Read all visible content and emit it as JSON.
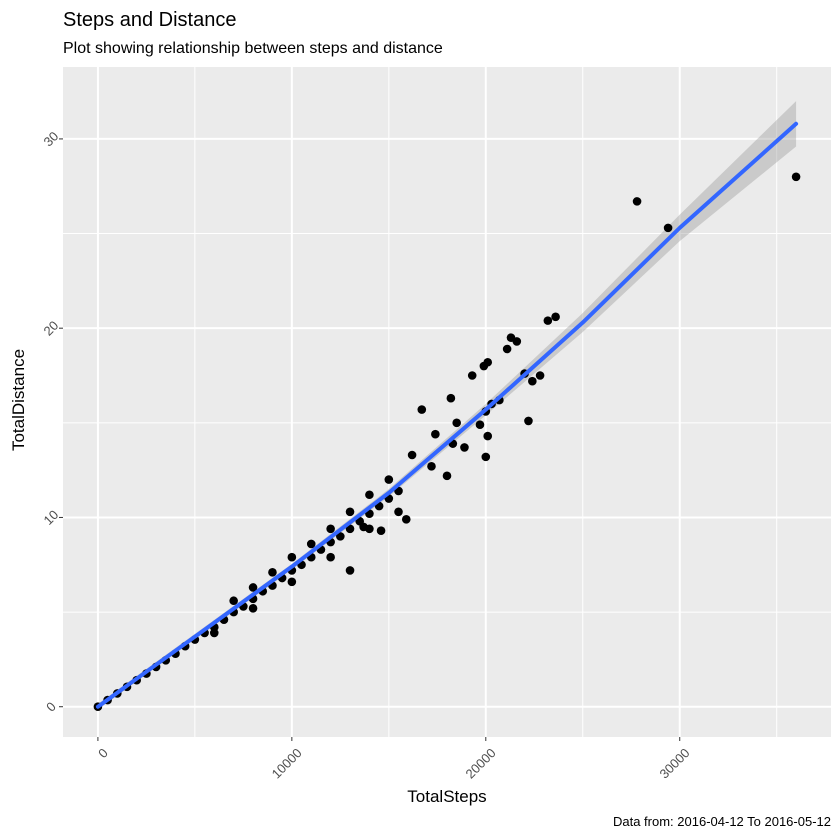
{
  "chart_data": {
    "type": "scatter",
    "title": "Steps and Distance",
    "subtitle": "Plot showing relationship between steps and distance",
    "xlabel": "TotalSteps",
    "ylabel": "TotalDistance",
    "caption": "Data from: 2016-04-12 To 2016-05-12",
    "xlim": [
      -1800,
      37800
    ],
    "ylim": [
      -1.6,
      33.8
    ],
    "x_ticks": [
      0,
      10000,
      20000,
      30000
    ],
    "y_ticks": [
      0,
      10,
      20,
      30
    ],
    "x_tick_labels": [
      "0",
      "10000",
      "20000",
      "30000"
    ],
    "y_tick_labels": [
      "0",
      "10",
      "20",
      "30"
    ],
    "grid": true,
    "legend": "none",
    "colors": {
      "panel": "#ebebeb",
      "grid": "#ffffff",
      "points": "#000000",
      "smooth_line": "#3366ff",
      "confidence_band": "#999999"
    },
    "series": [
      {
        "type": "scatter",
        "points": [
          [
            0,
            0
          ],
          [
            500,
            0.35
          ],
          [
            1000,
            0.7
          ],
          [
            1500,
            1.05
          ],
          [
            2000,
            1.4
          ],
          [
            2500,
            1.75
          ],
          [
            3000,
            2.1
          ],
          [
            3500,
            2.45
          ],
          [
            4000,
            2.8
          ],
          [
            4500,
            3.2
          ],
          [
            5000,
            3.55
          ],
          [
            5500,
            3.9
          ],
          [
            6000,
            4.2
          ],
          [
            6500,
            4.6
          ],
          [
            7000,
            5.0
          ],
          [
            7500,
            5.3
          ],
          [
            8000,
            5.7
          ],
          [
            8500,
            6.1
          ],
          [
            9000,
            6.4
          ],
          [
            9500,
            6.8
          ],
          [
            10000,
            7.2
          ],
          [
            10500,
            7.5
          ],
          [
            11000,
            7.9
          ],
          [
            11500,
            8.3
          ],
          [
            12000,
            8.7
          ],
          [
            12500,
            9.0
          ],
          [
            13000,
            9.4
          ],
          [
            13500,
            9.8
          ],
          [
            14000,
            10.2
          ],
          [
            14500,
            10.6
          ],
          [
            15000,
            11.0
          ],
          [
            15500,
            11.4
          ],
          [
            7000,
            5.6
          ],
          [
            8000,
            6.3
          ],
          [
            9000,
            7.1
          ],
          [
            10000,
            7.9
          ],
          [
            11000,
            8.6
          ],
          [
            12000,
            9.4
          ],
          [
            13000,
            10.3
          ],
          [
            14000,
            11.2
          ],
          [
            15000,
            12.0
          ],
          [
            6000,
            3.9
          ],
          [
            8000,
            5.2
          ],
          [
            10000,
            6.6
          ],
          [
            12000,
            7.9
          ],
          [
            14000,
            9.4
          ],
          [
            13000,
            7.2
          ],
          [
            13700,
            9.5
          ],
          [
            14600,
            9.3
          ],
          [
            15500,
            10.3
          ],
          [
            15900,
            9.9
          ],
          [
            16200,
            13.3
          ],
          [
            16700,
            15.7
          ],
          [
            17200,
            12.7
          ],
          [
            17400,
            14.4
          ],
          [
            18000,
            12.2
          ],
          [
            18200,
            16.3
          ],
          [
            18300,
            13.9
          ],
          [
            18500,
            15.0
          ],
          [
            18900,
            13.7
          ],
          [
            19300,
            17.5
          ],
          [
            19700,
            14.9
          ],
          [
            19900,
            18.0
          ],
          [
            20000,
            15.6
          ],
          [
            20100,
            14.3
          ],
          [
            20000,
            13.2
          ],
          [
            20100,
            18.2
          ],
          [
            20300,
            16.0
          ],
          [
            20700,
            16.2
          ],
          [
            21100,
            18.9
          ],
          [
            21300,
            19.5
          ],
          [
            21600,
            19.3
          ],
          [
            22000,
            17.6
          ],
          [
            22200,
            15.1
          ],
          [
            22400,
            17.2
          ],
          [
            22800,
            17.5
          ],
          [
            23200,
            20.4
          ],
          [
            23600,
            20.6
          ],
          [
            27800,
            26.7
          ],
          [
            29400,
            25.3
          ],
          [
            36000,
            28.0
          ]
        ]
      },
      {
        "type": "line",
        "name": "",
        "points": [
          [
            0,
            0
          ],
          [
            5000,
            3.7
          ],
          [
            10000,
            7.4
          ],
          [
            15000,
            11.3
          ],
          [
            20000,
            15.7
          ],
          [
            25000,
            20.3
          ],
          [
            30000,
            25.3
          ],
          [
            36000,
            30.8
          ]
        ]
      },
      {
        "type": "band",
        "upper": [
          [
            0,
            0.15
          ],
          [
            5000,
            3.85
          ],
          [
            10000,
            7.55
          ],
          [
            15000,
            11.5
          ],
          [
            20000,
            16.0
          ],
          [
            25000,
            20.8
          ],
          [
            30000,
            26.0
          ],
          [
            36000,
            32.0
          ]
        ],
        "lower": [
          [
            0,
            -0.15
          ],
          [
            5000,
            3.55
          ],
          [
            10000,
            7.25
          ],
          [
            15000,
            11.1
          ],
          [
            20000,
            15.4
          ],
          [
            25000,
            19.8
          ],
          [
            30000,
            24.6
          ],
          [
            36000,
            29.6
          ]
        ]
      }
    ]
  }
}
